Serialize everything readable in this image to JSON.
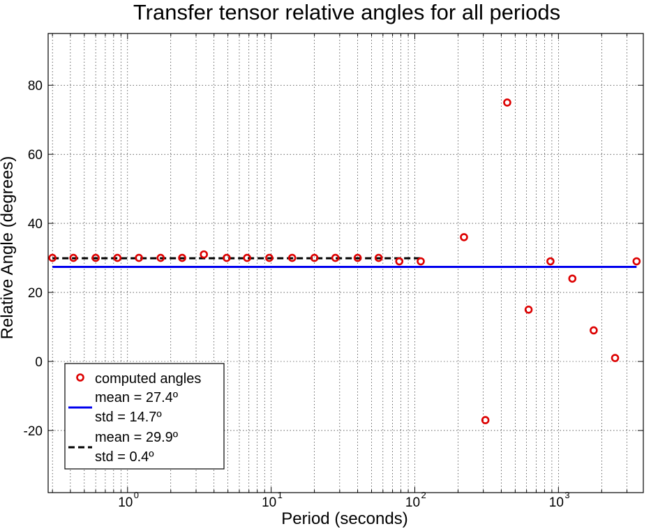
{
  "chart_data": {
    "type": "scatter",
    "title": "Transfer tensor relative angles for all periods",
    "xlabel": "Period (seconds)",
    "ylabel": "Relative Angle (degrees)",
    "xscale": "log",
    "xlim": [
      0.28,
      3900
    ],
    "ylim": [
      -38,
      95
    ],
    "grid": true,
    "legend_position": "bottom-left",
    "x_ticks": [
      {
        "value": 1,
        "base": "10",
        "exp": "0"
      },
      {
        "value": 10,
        "base": "10",
        "exp": "1"
      },
      {
        "value": 100,
        "base": "10",
        "exp": "2"
      },
      {
        "value": 1000,
        "base": "10",
        "exp": "3"
      }
    ],
    "y_ticks": [
      {
        "value": -20,
        "label": "-20"
      },
      {
        "value": 0,
        "label": "0"
      },
      {
        "value": 20,
        "label": "20"
      },
      {
        "value": 40,
        "label": "40"
      },
      {
        "value": 60,
        "label": "60"
      },
      {
        "value": 80,
        "label": "80"
      }
    ],
    "series": [
      {
        "name": "computed angles",
        "kind": "markers",
        "color": "#dd0000",
        "x": [
          0.3,
          0.42,
          0.6,
          0.85,
          1.2,
          1.7,
          2.4,
          3.4,
          4.9,
          6.8,
          9.7,
          14,
          20,
          28,
          40,
          56,
          78,
          110,
          220,
          310,
          440,
          620,
          880,
          1250,
          1760,
          2480,
          3500
        ],
        "y": [
          30,
          30,
          30,
          30,
          30,
          30,
          30,
          31,
          30,
          30,
          30,
          30,
          30,
          30,
          30,
          30,
          29,
          29,
          36,
          -17,
          75,
          15,
          29,
          24,
          9,
          1,
          29
        ]
      },
      {
        "name": "mean = 27.4º",
        "name_line2": "std = 14.7º",
        "kind": "line",
        "style": "solid",
        "color": "#0000ee",
        "x": [
          0.3,
          3500
        ],
        "y": [
          27.4,
          27.4
        ]
      },
      {
        "name": "mean = 29.9º",
        "name_line2": "std = 0.4º",
        "kind": "line",
        "style": "dashed",
        "color": "#000000",
        "x": [
          0.3,
          110
        ],
        "y": [
          29.9,
          29.9
        ]
      }
    ]
  }
}
